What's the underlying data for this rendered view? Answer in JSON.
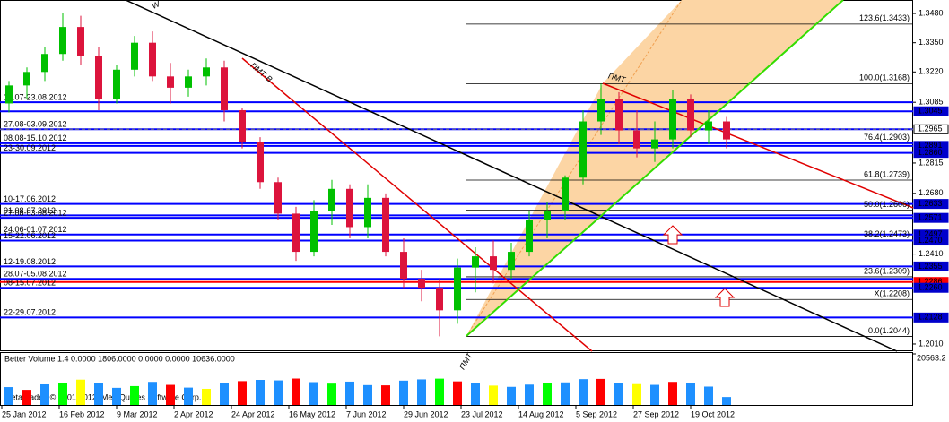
{
  "chart_data": {
    "type": "candlestick",
    "open": [
      1.308,
      1.316,
      1.322,
      1.33,
      1.342,
      1.329,
      1.31,
      1.323,
      1.335,
      1.32,
      1.315,
      1.32,
      1.324,
      1.305,
      1.291,
      1.273,
      1.259,
      1.242,
      1.26,
      1.27,
      1.253,
      1.266,
      1.242,
      1.23,
      1.226,
      1.216,
      1.235,
      1.24,
      1.234,
      1.242,
      1.256,
      1.26,
      1.275,
      1.3,
      1.31,
      1.296,
      1.288,
      1.292,
      1.31,
      1.296,
      1.3
    ],
    "high": [
      1.318,
      1.324,
      1.333,
      1.348,
      1.347,
      1.333,
      1.325,
      1.338,
      1.34,
      1.326,
      1.323,
      1.328,
      1.327,
      1.306,
      1.293,
      1.275,
      1.262,
      1.265,
      1.274,
      1.272,
      1.272,
      1.268,
      1.248,
      1.234,
      1.23,
      1.239,
      1.244,
      1.247,
      1.246,
      1.26,
      1.264,
      1.276,
      1.305,
      1.3168,
      1.313,
      1.305,
      1.3,
      1.314,
      1.312,
      1.305,
      1.302
    ],
    "low": [
      1.304,
      1.31,
      1.318,
      1.327,
      1.325,
      1.305,
      1.308,
      1.32,
      1.318,
      1.308,
      1.311,
      1.316,
      1.3,
      1.288,
      1.27,
      1.256,
      1.238,
      1.24,
      1.254,
      1.248,
      1.248,
      1.24,
      1.226,
      1.22,
      1.2044,
      1.21,
      1.224,
      1.228,
      1.23,
      1.24,
      1.248,
      1.256,
      1.272,
      1.294,
      1.29,
      1.284,
      1.282,
      1.288,
      1.293,
      1.29,
      1.288
    ],
    "close": [
      1.316,
      1.322,
      1.33,
      1.342,
      1.329,
      1.31,
      1.323,
      1.335,
      1.32,
      1.315,
      1.32,
      1.324,
      1.305,
      1.291,
      1.273,
      1.259,
      1.242,
      1.26,
      1.27,
      1.253,
      1.266,
      1.242,
      1.23,
      1.226,
      1.216,
      1.235,
      1.24,
      1.234,
      1.242,
      1.256,
      1.26,
      1.275,
      1.3,
      1.31,
      1.296,
      1.288,
      1.292,
      1.31,
      1.296,
      1.3,
      1.292
    ],
    "up_color": "#00c000",
    "down_color": "#dc143c",
    "x_labels": [
      "25 Jan 2012",
      "16 Feb 2012",
      "9 Mar 2012",
      "2 Apr 2012",
      "24 Apr 2012",
      "16 May 2012",
      "7 Jun 2012",
      "29 Jun 2012",
      "23 Jul 2012",
      "14 Aug 2012",
      "5 Sep 2012",
      "27 Sep 2012",
      "19 Oct 2012"
    ],
    "ylim": [
      1.1978,
      1.354
    ],
    "yticks": [
      {
        "value": 1.348,
        "label": "1.3480"
      },
      {
        "value": 1.335,
        "label": "1.3350"
      },
      {
        "value": 1.322,
        "label": "1.3220"
      },
      1.3085,
      1.2815,
      {
        "value": 1.268,
        "label": "1.2680"
      },
      {
        "value": 1.241,
        "label": "1.2410"
      },
      {
        "value": 1.201,
        "label": "1.2010"
      }
    ],
    "current_price": 1.2965,
    "levels": [
      {
        "value": 1.3085,
        "label": "16.07-23.08.2012",
        "color": "#0000ff"
      },
      {
        "value": 1.3045,
        "color": "#0000ff"
      },
      {
        "value": 1.2965,
        "label": "27.08-03.09.2012",
        "color": "#0000ff"
      },
      {
        "value": 1.2903,
        "label": "08.08-15.10.2012",
        "color": "#0000ff"
      },
      {
        "value": 1.2891,
        "color": "#0000ff"
      },
      {
        "value": 1.286,
        "label": "23-30.09.2012",
        "color": "#0000ff"
      },
      {
        "value": 1.2633,
        "label": "10-17.06.2012",
        "color": "#0000ff"
      },
      {
        "value": 1.2582,
        "label": "01.08-07.2012",
        "color": "#0000ff"
      },
      {
        "value": 1.2571,
        "label": "27.08-03.08.2012",
        "color": "#0000ff"
      },
      {
        "value": 1.2497,
        "label": "24.06-01.07.2012",
        "color": "#0000ff"
      },
      {
        "value": 1.247,
        "label": "15-22.06.2012",
        "color": "#0000ff"
      },
      {
        "value": 1.2355,
        "label": "12-19.08.2012",
        "color": "#0000ff"
      },
      {
        "value": 1.23,
        "label": "28.07-05.08.2012",
        "color": "#0000ff"
      },
      {
        "value": 1.2286,
        "color": "#ff0000"
      },
      {
        "value": 1.226,
        "label": "08-15.07.2012",
        "color": "#0000ff"
      },
      {
        "value": 1.2128,
        "label": "22-29.07.2012",
        "color": "#0000ff"
      }
    ],
    "price_labels": [
      1.3045,
      {
        "value": 1.2965,
        "label": "1.2965"
      },
      1.2891,
      {
        "value": 1.286,
        "label": "1.2860"
      },
      1.2633,
      1.2571,
      1.2497,
      {
        "value": 1.247,
        "label": "1.2470"
      },
      1.2355,
      1.2286,
      {
        "value": 1.226,
        "label": "1.2260"
      },
      1.2128
    ],
    "price_label_colors": [
      "#0000cc",
      "#ffffff",
      "#0000cc",
      "#0000cc",
      "#0000cc",
      "#0000cc",
      "#0000cc",
      "#0000cc",
      "#0000cc",
      "#ff0000",
      "#0000cc",
      "#0000cc"
    ],
    "fib_levels": [
      {
        "value": 1.3433,
        "label": "123.6(1.3433)"
      },
      {
        "value": 1.3168,
        "label": "100.0(1.3168)"
      },
      {
        "value": 1.2903,
        "label": "76.4(1.2903)"
      },
      {
        "value": 1.2739,
        "label": "61.8(1.2739)"
      },
      {
        "value": 1.2606,
        "label": "50.0(1.2606)"
      },
      {
        "value": 1.2473,
        "label": "38.2(1.2473)"
      },
      {
        "value": 1.2309,
        "label": "23.6(1.2309)"
      },
      {
        "value": 1.2208,
        "label": "X(1.2208)"
      },
      {
        "value": 1.2044,
        "label": "0.0(1.2044)"
      }
    ],
    "annotations": [
      "W",
      "ПМТ-В",
      "ПМТ",
      "ПМТ"
    ],
    "volume": {
      "title": "Better Volume 1.4 0.0000 1806.0000 0.0000 0.0000 10636.0000",
      "values": [
        7200,
        6100,
        8300,
        9000,
        10200,
        8800,
        6900,
        7600,
        9300,
        8100,
        7000,
        6500,
        8800,
        9600,
        10100,
        9900,
        10636,
        9200,
        8600,
        9400,
        8000,
        7900,
        9800,
        10300,
        10600,
        9500,
        8700,
        7800,
        7300,
        8200,
        8900,
        9100,
        10400,
        10500,
        9000,
        8400,
        8100,
        9300,
        8700,
        7400,
        3200
      ],
      "colors": [
        "#1e90ff",
        "#ff0000",
        "#1e90ff",
        "#00ff00",
        "#ffff00",
        "#1e90ff",
        "#1e90ff",
        "#00ff00",
        "#1e90ff",
        "#ff0000",
        "#1e90ff",
        "#ffff00",
        "#1e90ff",
        "#ff0000",
        "#1e90ff",
        "#1e90ff",
        "#ff0000",
        "#1e90ff",
        "#00ff00",
        "#1e90ff",
        "#1e90ff",
        "#ff0000",
        "#1e90ff",
        "#1e90ff",
        "#00ff00",
        "#ff0000",
        "#1e90ff",
        "#ffff00",
        "#1e90ff",
        "#1e90ff",
        "#00ff00",
        "#1e90ff",
        "#1e90ff",
        "#ff0000",
        "#1e90ff",
        "#ffff00",
        "#1e90ff",
        "#ff0000",
        "#1e90ff",
        "#1e90ff",
        "#1e90ff"
      ],
      "ylim": [
        0,
        20563.2
      ],
      "yticks": [
        20563.2
      ]
    },
    "copyright": "MetaTrader, © 2001-2012, MetaQuotes Software Corp."
  }
}
